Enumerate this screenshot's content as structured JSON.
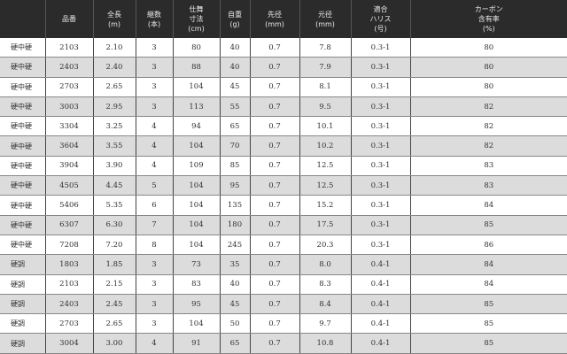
{
  "colors": {
    "header_bg": "#2b2b2b",
    "alt_row": "#dcdcdc"
  },
  "headers": [
    "",
    "品番",
    "全長\n(m)",
    "継数\n(本)",
    "仕舞\n寸法\n(cm)",
    "自重\n(g)",
    "先径\n(mm)",
    "元径\n(mm)",
    "適合\nハリス\n(号)",
    "カーボン\n含有率\n(%)"
  ],
  "rows": [
    [
      "硬中硬",
      "2103",
      "2.10",
      "3",
      "80",
      "40",
      "0.7",
      "7.8",
      "0.3-1",
      "80"
    ],
    [
      "硬中硬",
      "2403",
      "2.40",
      "3",
      "88",
      "40",
      "0.7",
      "7.9",
      "0.3-1",
      "80"
    ],
    [
      "硬中硬",
      "2703",
      "2.65",
      "3",
      "104",
      "45",
      "0.7",
      "8.1",
      "0.3-1",
      "80"
    ],
    [
      "硬中硬",
      "3003",
      "2.95",
      "3",
      "113",
      "55",
      "0.7",
      "9.5",
      "0.3-1",
      "82"
    ],
    [
      "硬中硬",
      "3304",
      "3.25",
      "4",
      "94",
      "65",
      "0.7",
      "10.1",
      "0.3-1",
      "82"
    ],
    [
      "硬中硬",
      "3604",
      "3.55",
      "4",
      "104",
      "70",
      "0.7",
      "10.2",
      "0.3-1",
      "82"
    ],
    [
      "硬中硬",
      "3904",
      "3.90",
      "4",
      "109",
      "85",
      "0.7",
      "12.5",
      "0.3-1",
      "83"
    ],
    [
      "硬中硬",
      "4505",
      "4.45",
      "5",
      "104",
      "95",
      "0.7",
      "12.5",
      "0.3-1",
      "83"
    ],
    [
      "硬中硬",
      "5406",
      "5.35",
      "6",
      "104",
      "135",
      "0.7",
      "15.2",
      "0.3-1",
      "84"
    ],
    [
      "硬中硬",
      "6307",
      "6.30",
      "7",
      "104",
      "180",
      "0.7",
      "17.5",
      "0.3-1",
      "85"
    ],
    [
      "硬中硬",
      "7208",
      "7.20",
      "8",
      "104",
      "245",
      "0.7",
      "20.3",
      "0.3-1",
      "86"
    ],
    [
      "硬調",
      "1803",
      "1.85",
      "3",
      "73",
      "35",
      "0.7",
      "8.0",
      "0.4-1",
      "84"
    ],
    [
      "硬調",
      "2103",
      "2.15",
      "3",
      "83",
      "40",
      "0.7",
      "8.3",
      "0.4-1",
      "84"
    ],
    [
      "硬調",
      "2403",
      "2.45",
      "3",
      "95",
      "45",
      "0.7",
      "8.4",
      "0.4-1",
      "85"
    ],
    [
      "硬調",
      "2703",
      "2.65",
      "3",
      "104",
      "50",
      "0.7",
      "9.7",
      "0.4-1",
      "85"
    ],
    [
      "硬調",
      "3004",
      "3.00",
      "4",
      "91",
      "65",
      "0.7",
      "10.8",
      "0.4-1",
      "85"
    ]
  ]
}
